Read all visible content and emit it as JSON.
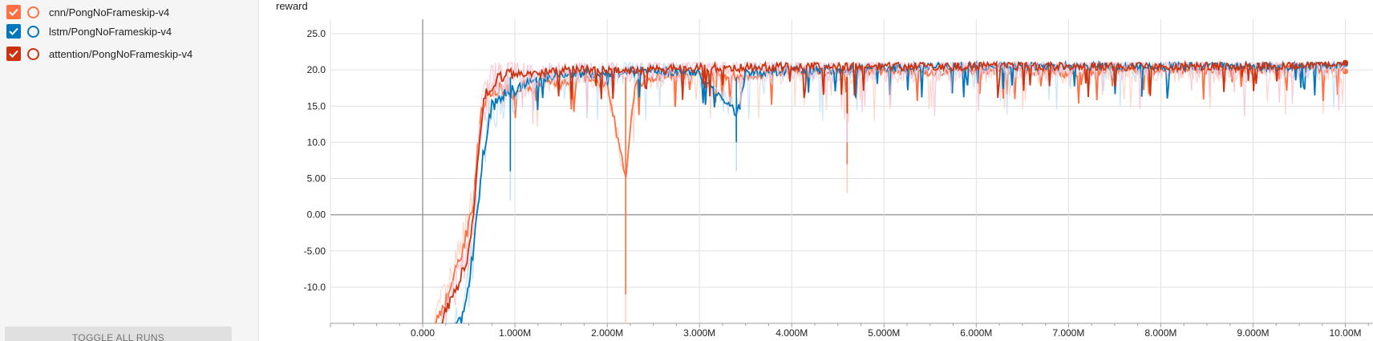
{
  "sidebar": {
    "runs": [
      {
        "label": "cnn/PongNoFrameskip-v4",
        "color": "#ff7043",
        "checked": true
      },
      {
        "label": "lstm/PongNoFrameskip-v4",
        "color": "#0077bb",
        "checked": true
      },
      {
        "label": "attention/PongNoFrameskip-v4",
        "color": "#cc3311",
        "checked": true
      }
    ],
    "toggle_label": "TOGGLE ALL RUNS"
  },
  "chart_data": {
    "type": "line",
    "title": "reward",
    "xlabel": "",
    "ylabel": "",
    "xlim": [
      -1000000,
      10300000
    ],
    "ylim": [
      -15,
      27
    ],
    "x_ticks": [
      0,
      1000000,
      2000000,
      3000000,
      4000000,
      5000000,
      6000000,
      7000000,
      8000000,
      9000000,
      10000000
    ],
    "x_tick_labels": [
      "0.000",
      "1.000M",
      "2.000M",
      "3.000M",
      "4.000M",
      "5.000M",
      "6.000M",
      "7.000M",
      "8.000M",
      "9.000M",
      "10.00M"
    ],
    "y_ticks": [
      -10,
      -5,
      0,
      5,
      10,
      15,
      20,
      25
    ],
    "y_tick_labels": [
      "-10.0",
      "-5.00",
      "0.00",
      "5.00",
      "10.0",
      "15.0",
      "20.0",
      "25.0"
    ],
    "grid": true,
    "series": [
      {
        "name": "cnn/PongNoFrameskip-v4",
        "color": "#ff7043",
        "raw_color": "#ffccbc",
        "x": [
          130000,
          250000,
          350000,
          450000,
          550000,
          600000,
          650000,
          700000,
          800000,
          900000,
          1000000,
          1100000,
          1200000,
          1300000,
          1500000,
          1700000,
          2000000,
          2200000,
          2300000,
          2500000,
          3000000,
          3500000,
          4000000,
          4500000,
          5000000,
          5500000,
          6000000,
          6500000,
          7000000,
          7500000,
          8000000,
          8500000,
          9000000,
          9500000,
          10000000
        ],
        "y": [
          -15,
          -12,
          -8,
          -4,
          2,
          10,
          15,
          16,
          17,
          18,
          16,
          18,
          17,
          19,
          18,
          19,
          18,
          5,
          18,
          19,
          19.5,
          19,
          20,
          19.5,
          20,
          19.5,
          20,
          20,
          19.5,
          20,
          20,
          20,
          20,
          20.5,
          19.8
        ]
      },
      {
        "name": "lstm/PongNoFrameskip-v4",
        "color": "#0077bb",
        "raw_color": "#bbdefb",
        "x": [
          350000,
          450000,
          550000,
          650000,
          750000,
          850000,
          950000,
          1100000,
          1300000,
          1500000,
          2000000,
          2500000,
          3000000,
          3400000,
          3500000,
          4000000,
          4500000,
          5000000,
          5500000,
          6000000,
          6500000,
          7000000,
          7500000,
          8000000,
          8500000,
          9000000,
          9500000,
          10000000
        ],
        "y": [
          -15,
          -14,
          -5,
          8,
          15,
          16,
          17,
          18,
          19,
          19.5,
          19.5,
          20,
          19.5,
          14,
          19.5,
          20,
          20,
          20.3,
          20.5,
          20.5,
          20.5,
          20.5,
          20.5,
          20.5,
          20.5,
          20.5,
          20.5,
          20.8
        ]
      },
      {
        "name": "attention/PongNoFrameskip-v4",
        "color": "#cc3311",
        "raw_color": "#f8bbd0",
        "x": [
          200000,
          300000,
          400000,
          500000,
          550000,
          600000,
          650000,
          700000,
          750000,
          800000,
          900000,
          1000000,
          1200000,
          1500000,
          2000000,
          2500000,
          3000000,
          3500000,
          4000000,
          4500000,
          5000000,
          5500000,
          6000000,
          6500000,
          7000000,
          7500000,
          8000000,
          8500000,
          9000000,
          9500000,
          10000000
        ],
        "y": [
          -15,
          -12,
          -9,
          -5,
          0,
          8,
          15,
          17,
          18,
          18.5,
          19,
          19.5,
          19.5,
          20,
          20,
          20,
          20.3,
          20.3,
          20.5,
          20.5,
          20.5,
          20.5,
          20.5,
          20.5,
          20.5,
          20.5,
          20.5,
          20.5,
          20.5,
          20.7,
          21
        ]
      }
    ],
    "dips": [
      {
        "series": 0,
        "x": 2200000,
        "y_raw": -15
      },
      {
        "series": 0,
        "x": 4600000,
        "y_raw": 3
      },
      {
        "series": 1,
        "x": 3400000,
        "y_raw": 6
      },
      {
        "series": 1,
        "x": 950000,
        "y_raw": 2
      },
      {
        "series": 2,
        "x": 4600000,
        "y_raw": 10
      }
    ]
  }
}
